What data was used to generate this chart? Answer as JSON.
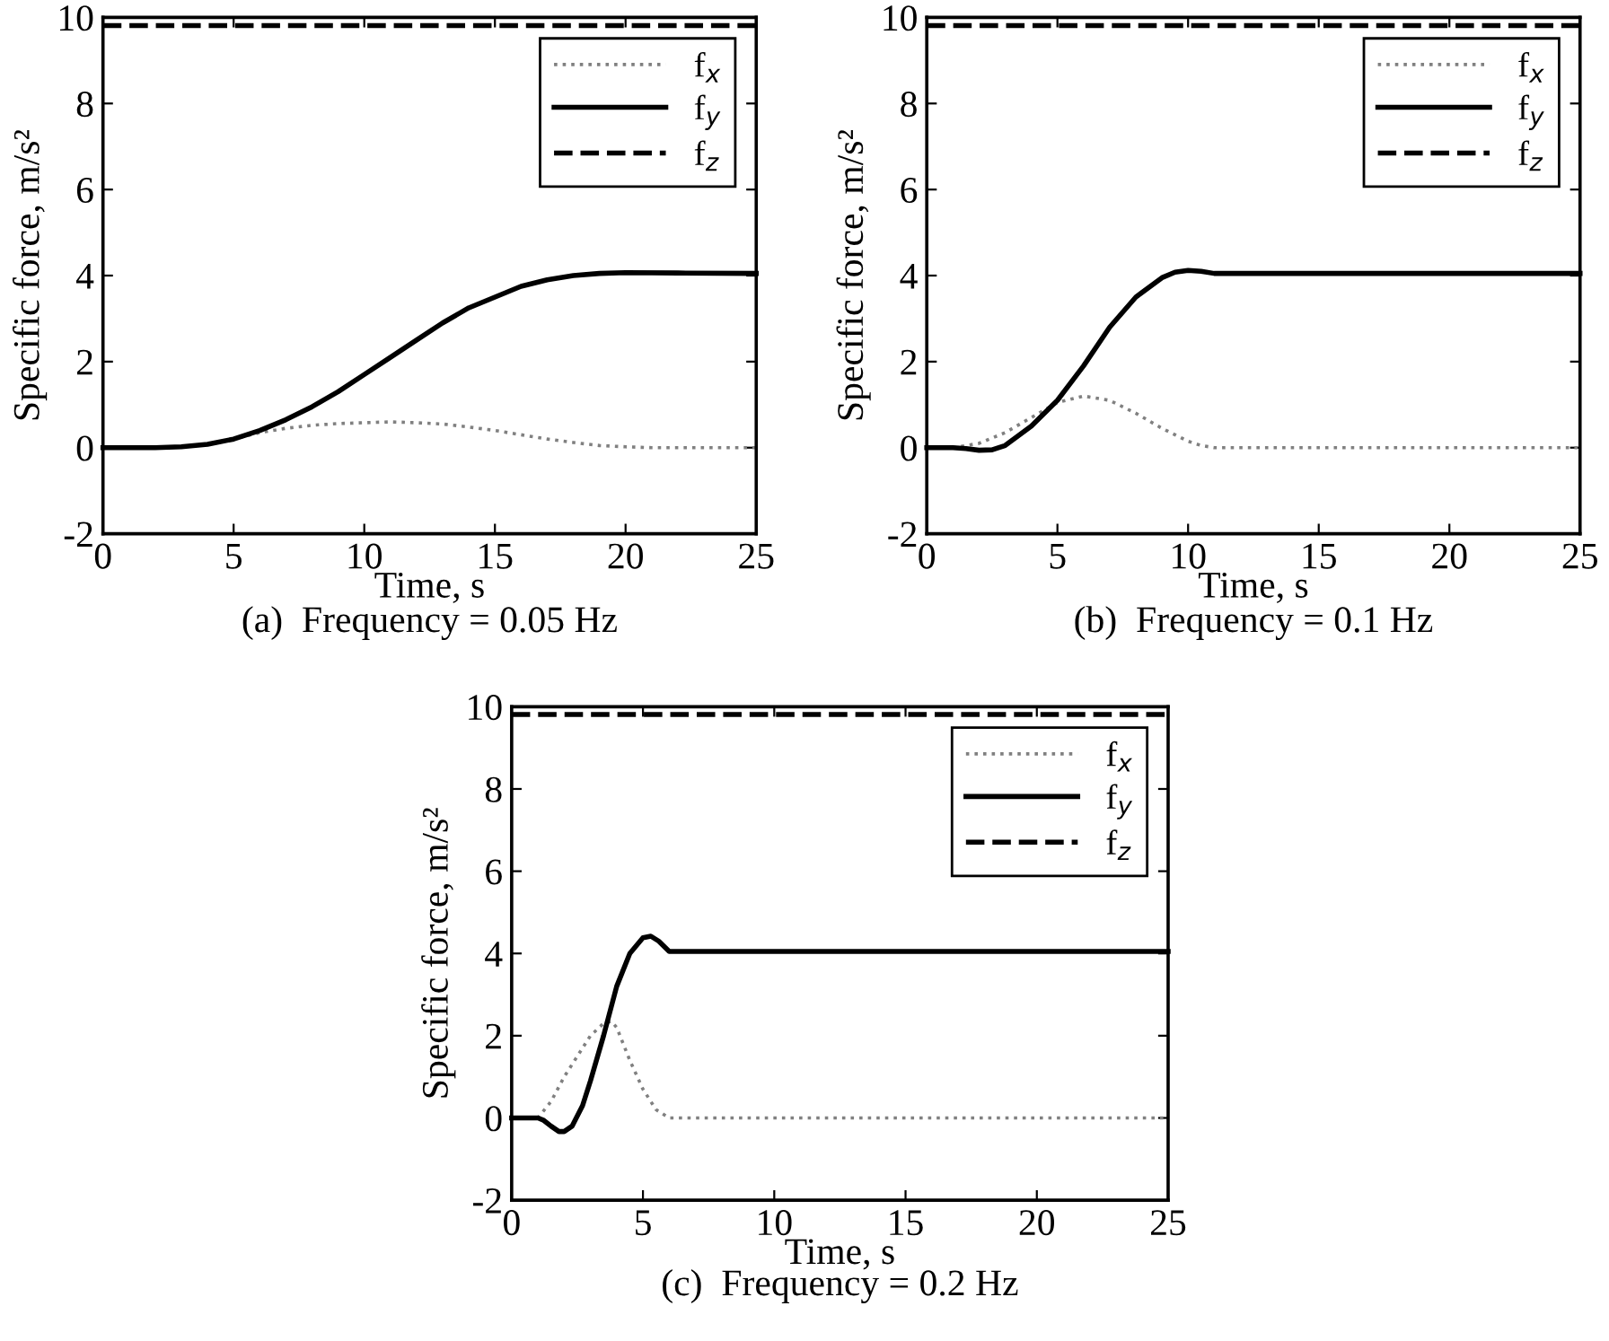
{
  "chart_data": [
    {
      "type": "line",
      "title": "(a)  Frequency = 0.05 Hz",
      "xlabel": "Time, s",
      "ylabel": "Specific force, m/s²",
      "xlim": [
        0,
        25
      ],
      "ylim": [
        -2,
        10
      ],
      "xticks": [
        0,
        5,
        10,
        15,
        20,
        25
      ],
      "yticks": [
        -2,
        0,
        2,
        4,
        6,
        8,
        10
      ],
      "grid": false,
      "legend": "top right",
      "marker": "none",
      "series": [
        {
          "name": "f$_{x}$",
          "color": "#808080",
          "line_style": "dotted",
          "x": [
            0,
            2,
            3,
            4,
            5,
            6,
            7,
            8,
            9,
            10,
            11,
            12,
            13,
            14,
            15,
            16,
            17,
            18,
            19,
            20,
            21,
            25
          ],
          "values": [
            0,
            0,
            0.02,
            0.08,
            0.2,
            0.35,
            0.45,
            0.52,
            0.56,
            0.58,
            0.6,
            0.58,
            0.55,
            0.48,
            0.4,
            0.3,
            0.2,
            0.12,
            0.05,
            0.02,
            0,
            0
          ]
        },
        {
          "name": "f$_{y}$",
          "color": "#000000",
          "line_style": "solid",
          "x": [
            0,
            2,
            3,
            4,
            5,
            6,
            7,
            8,
            9,
            10,
            11,
            12,
            13,
            14,
            15,
            16,
            17,
            18,
            19,
            20,
            22,
            25
          ],
          "values": [
            0,
            0,
            0.02,
            0.08,
            0.2,
            0.4,
            0.65,
            0.95,
            1.3,
            1.7,
            2.1,
            2.5,
            2.9,
            3.25,
            3.5,
            3.75,
            3.9,
            4.0,
            4.05,
            4.07,
            4.06,
            4.05
          ]
        },
        {
          "name": "f$_{z}$",
          "color": "#000000",
          "line_style": "dashed",
          "x": [
            0,
            25
          ],
          "values": [
            9.81,
            9.81
          ]
        }
      ]
    },
    {
      "type": "line",
      "title": "(b)  Frequency = 0.1 Hz",
      "xlabel": "Time, s",
      "ylabel": "Specific force, m/s²",
      "xlim": [
        0,
        25
      ],
      "ylim": [
        -2,
        10
      ],
      "xticks": [
        0,
        5,
        10,
        15,
        20,
        25
      ],
      "yticks": [
        -2,
        0,
        2,
        4,
        6,
        8,
        10
      ],
      "grid": false,
      "legend": "top right",
      "marker": "none",
      "series": [
        {
          "name": "f$_{x}$",
          "color": "#808080",
          "line_style": "dotted",
          "x": [
            0,
            1,
            2,
            3,
            4,
            5,
            6,
            7,
            8,
            9,
            10,
            10.5,
            11,
            25
          ],
          "values": [
            0,
            0,
            0.1,
            0.35,
            0.7,
            1.05,
            1.2,
            1.1,
            0.8,
            0.45,
            0.15,
            0.05,
            0,
            0
          ]
        },
        {
          "name": "f$_{y}$",
          "color": "#000000",
          "line_style": "solid",
          "x": [
            0,
            1,
            1.5,
            2,
            2.5,
            3,
            4,
            5,
            6,
            7,
            8,
            9,
            9.5,
            10,
            10.5,
            11,
            25
          ],
          "values": [
            0,
            0,
            -0.02,
            -0.06,
            -0.05,
            0.05,
            0.5,
            1.1,
            1.9,
            2.8,
            3.5,
            3.95,
            4.08,
            4.12,
            4.1,
            4.05,
            4.05
          ]
        },
        {
          "name": "f$_{z}$",
          "color": "#000000",
          "line_style": "dashed",
          "x": [
            0,
            25
          ],
          "values": [
            9.81,
            9.81
          ]
        }
      ]
    },
    {
      "type": "line",
      "title": "(c)  Frequency = 0.2 Hz",
      "xlabel": "Time, s",
      "ylabel": "Specific force, m/s²",
      "xlim": [
        0,
        25
      ],
      "ylim": [
        -2,
        10
      ],
      "xticks": [
        0,
        5,
        10,
        15,
        20,
        25
      ],
      "yticks": [
        -2,
        0,
        2,
        4,
        6,
        8,
        10
      ],
      "grid": false,
      "legend": "top right",
      "marker": "none",
      "series": [
        {
          "name": "f$_{x}$",
          "color": "#808080",
          "line_style": "dotted",
          "x": [
            0,
            1,
            1.5,
            2,
            2.5,
            3,
            3.5,
            3.8,
            4,
            4.5,
            5,
            5.5,
            6,
            25
          ],
          "values": [
            0,
            0,
            0.4,
            1.0,
            1.5,
            2.0,
            2.3,
            2.35,
            2.2,
            1.4,
            0.7,
            0.2,
            0,
            0
          ]
        },
        {
          "name": "f$_{y}$",
          "color": "#000000",
          "line_style": "solid",
          "x": [
            0,
            1,
            1.2,
            1.5,
            1.8,
            2,
            2.3,
            2.7,
            3,
            3.5,
            4,
            4.5,
            5,
            5.3,
            5.6,
            6,
            25
          ],
          "values": [
            0,
            0,
            -0.05,
            -0.2,
            -0.33,
            -0.33,
            -0.2,
            0.3,
            0.9,
            2.0,
            3.2,
            4.0,
            4.38,
            4.42,
            4.3,
            4.05,
            4.05
          ]
        },
        {
          "name": "f$_{z}$",
          "color": "#000000",
          "line_style": "dashed",
          "x": [
            0,
            25
          ],
          "values": [
            9.81,
            9.81
          ]
        }
      ]
    }
  ]
}
